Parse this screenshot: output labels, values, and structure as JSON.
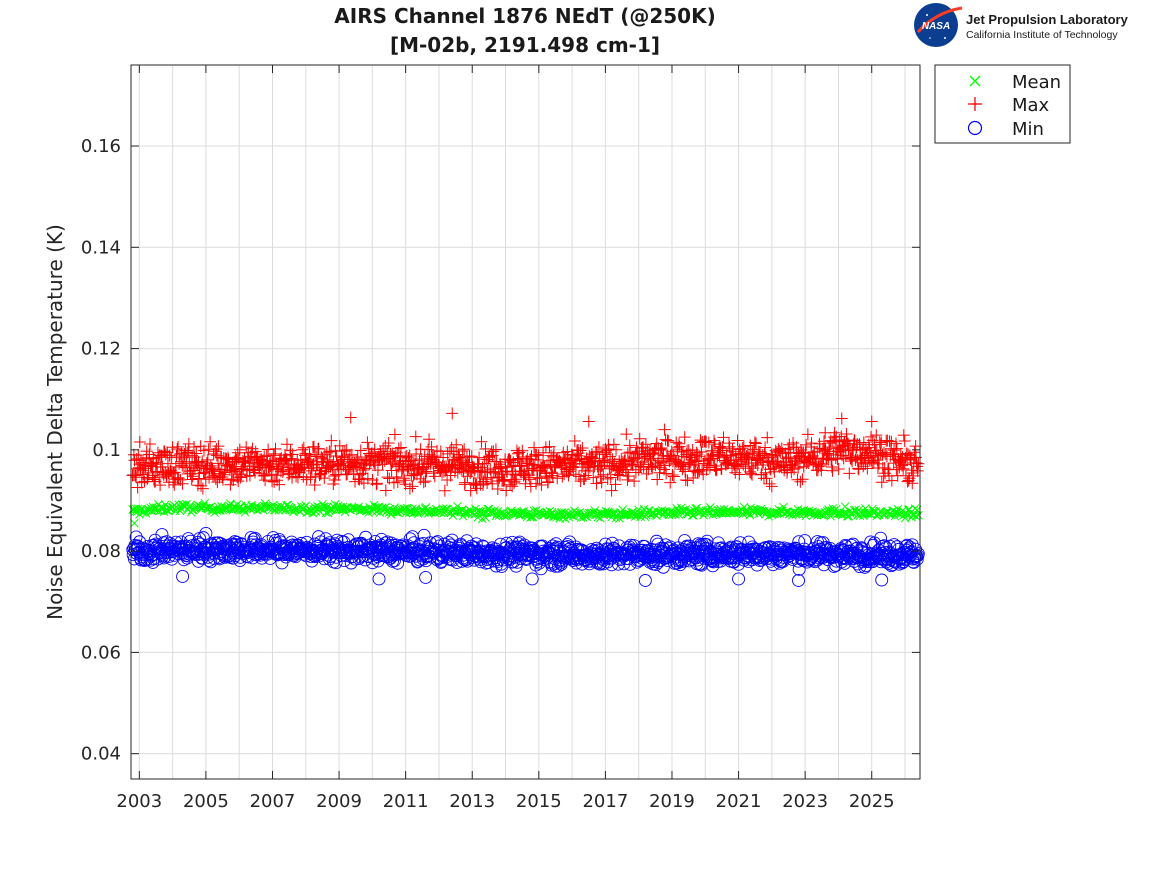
{
  "chart_data": {
    "type": "scatter",
    "title_line1": "AIRS Channel 1876 NEdT (@250K)",
    "title_line2": "[M-02b, 2191.498 cm-1]",
    "xlabel": "",
    "ylabel": "Noise Equivalent Delta Temperature (K)",
    "xlim": [
      2002.75,
      2026.45
    ],
    "ylim": [
      0.035,
      0.176
    ],
    "x_ticks": [
      2003,
      2005,
      2007,
      2009,
      2011,
      2013,
      2015,
      2017,
      2019,
      2021,
      2023,
      2025
    ],
    "x_tick_labels": [
      "2003",
      "2005",
      "2007",
      "2009",
      "2011",
      "2013",
      "2015",
      "2017",
      "2019",
      "2021",
      "2023",
      "2025"
    ],
    "x_minor_grid_step": 1,
    "y_ticks": [
      0.04,
      0.06,
      0.08,
      0.1,
      0.12,
      0.14,
      0.16
    ],
    "y_tick_labels": [
      "0.04",
      "0.06",
      "0.08",
      "0.1",
      "0.12",
      "0.14",
      "0.16"
    ],
    "grid": true,
    "legend_position": "outside-top-right",
    "series": [
      {
        "name": "Mean",
        "marker": "x",
        "color": "#00ff00",
        "trend": [
          [
            2002.8,
            0.0878
          ],
          [
            2004.0,
            0.0886
          ],
          [
            2006.0,
            0.0885
          ],
          [
            2009.0,
            0.0884
          ],
          [
            2012.0,
            0.0879
          ],
          [
            2015.0,
            0.0873
          ],
          [
            2017.0,
            0.0872
          ],
          [
            2019.0,
            0.0876
          ],
          [
            2021.0,
            0.0877
          ],
          [
            2023.0,
            0.0877
          ],
          [
            2026.4,
            0.0874
          ]
        ],
        "spread": 0.0004,
        "outliers": [
          [
            2002.85,
            0.0855
          ],
          [
            2013.3,
            0.0864
          ],
          [
            2024.2,
            0.0888
          ]
        ]
      },
      {
        "name": "Max",
        "marker": "+",
        "color": "#ff0000",
        "trend": [
          [
            2002.8,
            0.0965
          ],
          [
            2004.0,
            0.097
          ],
          [
            2007.0,
            0.0972
          ],
          [
            2010.0,
            0.0973
          ],
          [
            2013.0,
            0.0968
          ],
          [
            2015.0,
            0.0966
          ],
          [
            2017.0,
            0.097
          ],
          [
            2019.0,
            0.0985
          ],
          [
            2021.0,
            0.0985
          ],
          [
            2022.5,
            0.0975
          ],
          [
            2024.0,
            0.1
          ],
          [
            2025.0,
            0.0995
          ],
          [
            2026.4,
            0.0965
          ]
        ],
        "spread": 0.002,
        "outliers": [
          [
            2009.35,
            0.1064
          ],
          [
            2012.4,
            0.1072
          ],
          [
            2016.5,
            0.1056
          ],
          [
            2024.1,
            0.1062
          ],
          [
            2025.0,
            0.1056
          ],
          [
            2014.2,
            0.0928
          ]
        ]
      },
      {
        "name": "Min",
        "marker": "o",
        "color": "#0000ff",
        "trend": [
          [
            2002.8,
            0.08
          ],
          [
            2005.0,
            0.0803
          ],
          [
            2009.0,
            0.0801
          ],
          [
            2013.0,
            0.0797
          ],
          [
            2017.0,
            0.0792
          ],
          [
            2021.0,
            0.0795
          ],
          [
            2026.4,
            0.0793
          ]
        ],
        "spread": 0.0011,
        "outliers": [
          [
            2004.3,
            0.075
          ],
          [
            2010.2,
            0.0745
          ],
          [
            2011.6,
            0.0748
          ],
          [
            2014.8,
            0.0745
          ],
          [
            2018.2,
            0.0742
          ],
          [
            2021.0,
            0.0745
          ],
          [
            2022.8,
            0.0742
          ],
          [
            2025.3,
            0.0743
          ],
          [
            2005.0,
            0.0835
          ]
        ]
      }
    ]
  },
  "logo": {
    "nasa_text": "NASA",
    "org_name": "Jet Propulsion Laboratory",
    "org_sub": "California Institute of Technology"
  },
  "colors": {
    "axes": "#262626",
    "grid": "#dcdcdc"
  }
}
